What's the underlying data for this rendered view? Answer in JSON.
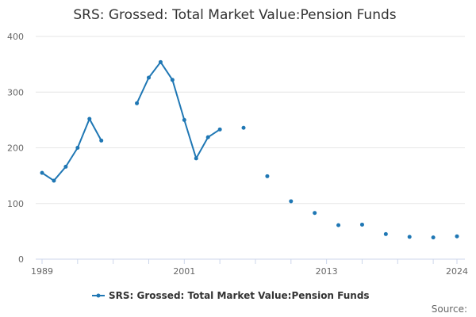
{
  "chart_data": {
    "type": "line",
    "title": "SRS: Grossed: Total Market Value:Pension Funds",
    "xlabel": "",
    "ylabel": "",
    "source_label": "Source:",
    "xlim": [
      1989,
      2024
    ],
    "ylim": [
      0,
      400
    ],
    "y_ticks": [
      0,
      100,
      200,
      300,
      400
    ],
    "x_ticks": [
      1989,
      2001,
      2013,
      2024
    ],
    "grid": true,
    "legend_position": "bottom-center",
    "color": "#1f77b4",
    "series": [
      {
        "name": "SRS: Grossed: Total Market Value:Pension Funds",
        "x": [
          1989,
          1990,
          1991,
          1992,
          1993,
          1994,
          1995,
          1996,
          1997,
          1998,
          1999,
          2000,
          2001,
          2002,
          2003,
          2004,
          2005,
          2006,
          2007,
          2008,
          2009,
          2010,
          2011,
          2012,
          2013,
          2014,
          2015,
          2016,
          2017,
          2018,
          2019,
          2020,
          2021,
          2022,
          2023,
          2024
        ],
        "values": [
          155,
          141,
          166,
          200,
          252,
          213,
          null,
          null,
          280,
          326,
          354,
          322,
          250,
          181,
          219,
          233,
          null,
          236,
          null,
          149,
          null,
          104,
          null,
          83,
          null,
          61,
          null,
          62,
          null,
          45,
          null,
          40,
          null,
          39,
          null,
          41
        ]
      }
    ]
  }
}
